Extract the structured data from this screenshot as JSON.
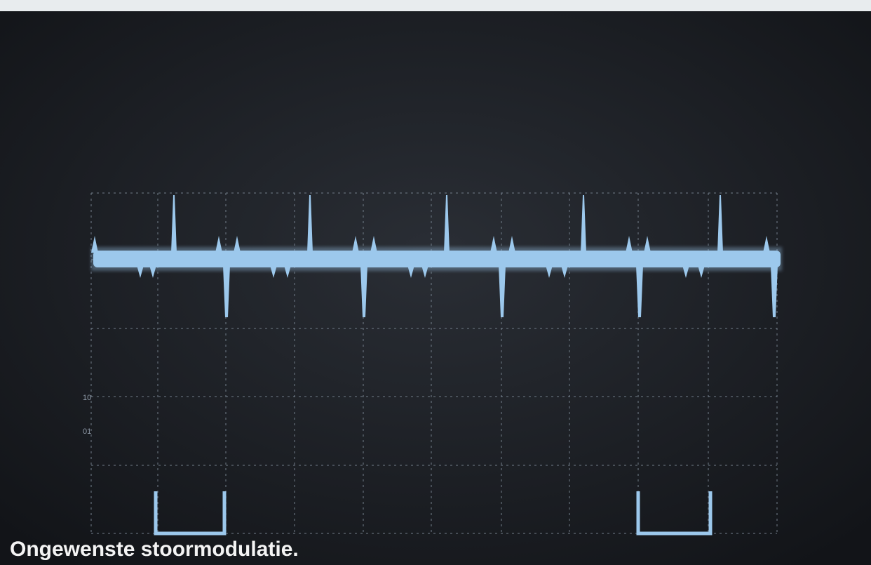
{
  "caption": "Ongewenste stoormodulatie.",
  "graticule_labels": [
    "10",
    "01"
  ]
}
